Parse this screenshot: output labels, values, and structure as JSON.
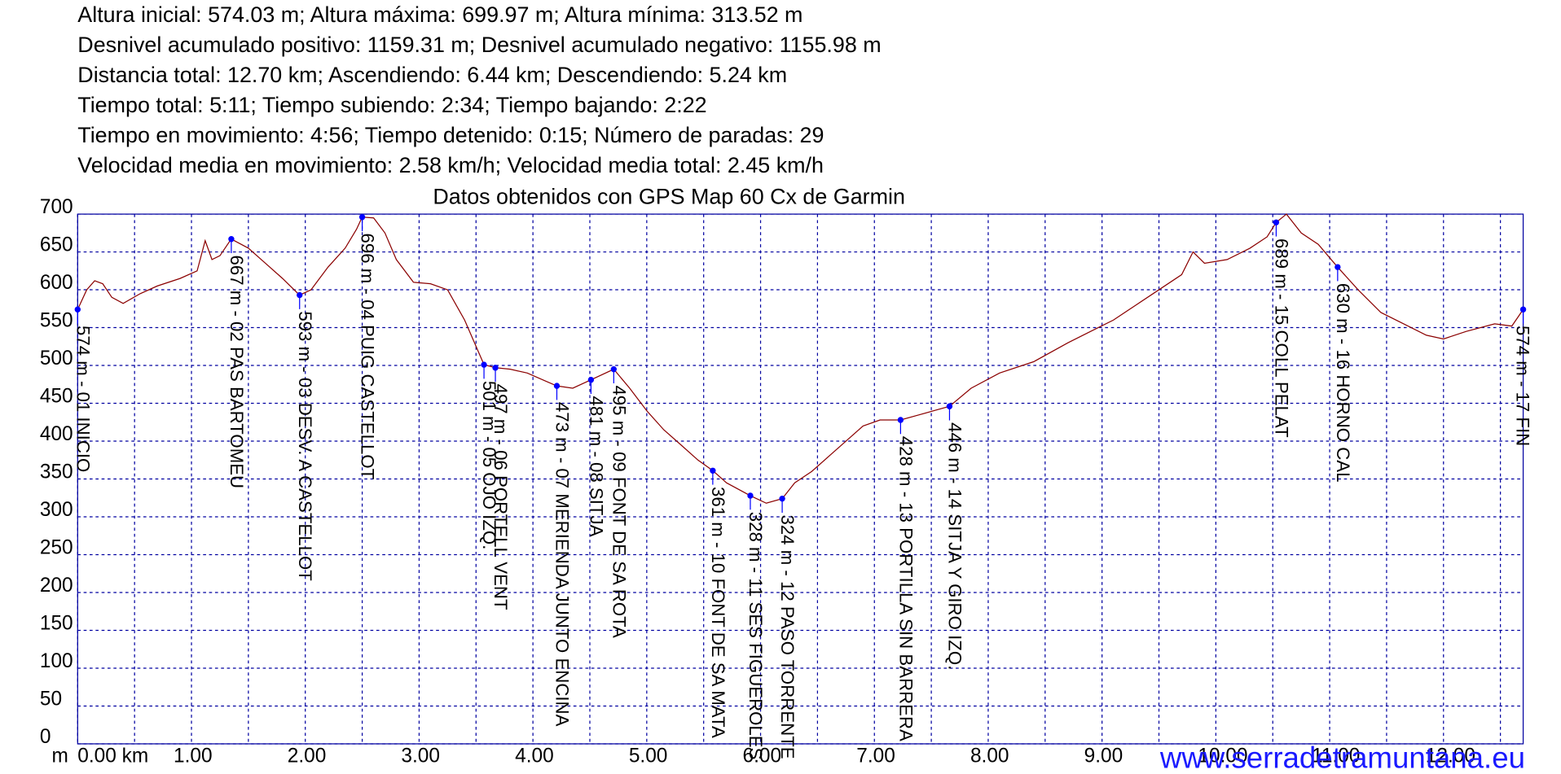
{
  "chart_data": {
    "type": "line",
    "info_lines": [
      "Altura inicial: 574.03 m; Altura máxima: 699.97 m; Altura mínima: 313.52 m",
      "Desnivel acumulado positivo: 1159.31 m; Desnivel acumulado negativo: 1155.98 m",
      "Distancia total: 12.70 km; Ascendiendo: 6.44 km; Descendiendo: 5.24 km",
      "Tiempo total: 5:11; Tiempo subiendo: 2:34; Tiempo bajando: 2:22",
      "Tiempo en movimiento: 4:56; Tiempo detenido: 0:15; Número de paradas: 29",
      "Velocidad media en movimiento: 2.58 km/h; Velocidad media total: 2.45 km/h"
    ],
    "title": "Datos obtenidos con GPS Map 60 Cx de Garmin",
    "y_label": "m",
    "watermark": "www.serradetramuntana.eu",
    "xlim": [
      0,
      12.7
    ],
    "ylim": [
      0,
      700
    ],
    "xticks": [
      {
        "value": 0,
        "label": "0.00 km"
      },
      {
        "value": 1,
        "label": "1.00"
      },
      {
        "value": 2,
        "label": "2.00"
      },
      {
        "value": 3,
        "label": "3.00"
      },
      {
        "value": 4,
        "label": "4.00"
      },
      {
        "value": 5,
        "label": "5.00"
      },
      {
        "value": 6,
        "label": "6.00"
      },
      {
        "value": 7,
        "label": "7.00"
      },
      {
        "value": 8,
        "label": "8.00"
      },
      {
        "value": 9,
        "label": "9.00"
      },
      {
        "value": 10,
        "label": "10.00"
      },
      {
        "value": 11,
        "label": "11.00"
      },
      {
        "value": 12,
        "label": "12.00"
      }
    ],
    "x_minor_ticks": [
      0.5,
      1.5,
      2.5,
      3.5,
      4.5,
      5.5,
      6.5,
      7.5,
      8.5,
      9.5,
      10.5,
      11.5,
      12.5
    ],
    "yticks": [
      0,
      50,
      100,
      150,
      200,
      250,
      300,
      350,
      400,
      450,
      500,
      550,
      600,
      650,
      700
    ],
    "grid": true,
    "grid_color": "#0000a0",
    "series": [
      {
        "color": "#8b0000",
        "x": [
          0,
          0.08,
          0.15,
          0.22,
          0.3,
          0.4,
          0.55,
          0.7,
          0.9,
          1.05,
          1.12,
          1.18,
          1.25,
          1.35,
          1.5,
          1.65,
          1.8,
          1.95,
          2.05,
          2.2,
          2.35,
          2.45,
          2.5,
          2.6,
          2.7,
          2.8,
          2.95,
          3.1,
          3.25,
          3.4,
          3.57,
          3.67,
          3.8,
          3.95,
          4.1,
          4.21,
          4.35,
          4.51,
          4.71,
          4.85,
          5.0,
          5.15,
          5.3,
          5.45,
          5.58,
          5.7,
          5.91,
          6.05,
          6.19,
          6.3,
          6.45,
          6.6,
          6.75,
          6.9,
          7.05,
          7.23,
          7.4,
          7.66,
          7.85,
          8.1,
          8.4,
          8.7,
          8.9,
          9.1,
          9.3,
          9.5,
          9.7,
          9.8,
          9.9,
          10.1,
          10.3,
          10.45,
          10.53,
          10.62,
          10.75,
          10.9,
          11.07,
          11.25,
          11.45,
          11.65,
          11.85,
          12.0,
          12.2,
          12.45,
          12.6,
          12.7
        ],
        "values": [
          574,
          600,
          612,
          608,
          590,
          582,
          595,
          605,
          615,
          625,
          665,
          640,
          645,
          667,
          655,
          635,
          615,
          593,
          600,
          630,
          655,
          680,
          696,
          695,
          675,
          640,
          610,
          608,
          600,
          560,
          501,
          497,
          495,
          490,
          480,
          473,
          470,
          481,
          495,
          470,
          440,
          415,
          395,
          375,
          361,
          345,
          328,
          318,
          324,
          345,
          360,
          380,
          400,
          420,
          428,
          428,
          435,
          446,
          470,
          490,
          505,
          530,
          545,
          560,
          580,
          600,
          620,
          650,
          635,
          640,
          655,
          670,
          689,
          700,
          675,
          660,
          630,
          600,
          570,
          555,
          540,
          535,
          545,
          555,
          552,
          574
        ]
      }
    ],
    "waypoints": {
      "color": "#0000ff",
      "x": [
        0,
        1.35,
        1.95,
        2.5,
        3.57,
        3.67,
        4.21,
        4.51,
        4.71,
        5.58,
        5.91,
        6.19,
        7.23,
        7.66,
        10.53,
        11.07,
        12.7
      ],
      "values": [
        574,
        667,
        593,
        696,
        501,
        497,
        473,
        481,
        495,
        361,
        328,
        324,
        428,
        446,
        689,
        630,
        574
      ],
      "value_labels": [
        "574 m - 01 INICIO",
        "667 m - 02 PAS BARTOMEU",
        "593 m - 03 DESV. A CASTELLOT",
        "696 m - 04 PUIG CASTELLOT",
        "501 m - 05 OJO IZQ.",
        "497 m - 06 PORTELL VENT",
        "473 m - 07 MERIENDA JUNTO ENCINA",
        "481 m - 08 SITJA",
        "495 m - 09 FONT DE SA ROTA",
        "361 m - 10 FONT DE SA MATA",
        "328 m - 11 SES FIGUEROLES",
        "324 m - 12 PASO TORRENTE",
        "428 m - 13 PORTILLA SIN BARRERA",
        "446 m - 14 SITJA Y GIRO IZQ.",
        "689 m - 15 COLL PELAT",
        "630 m - 16 HORNO CAL",
        "574 m - 17 FIN"
      ]
    }
  }
}
